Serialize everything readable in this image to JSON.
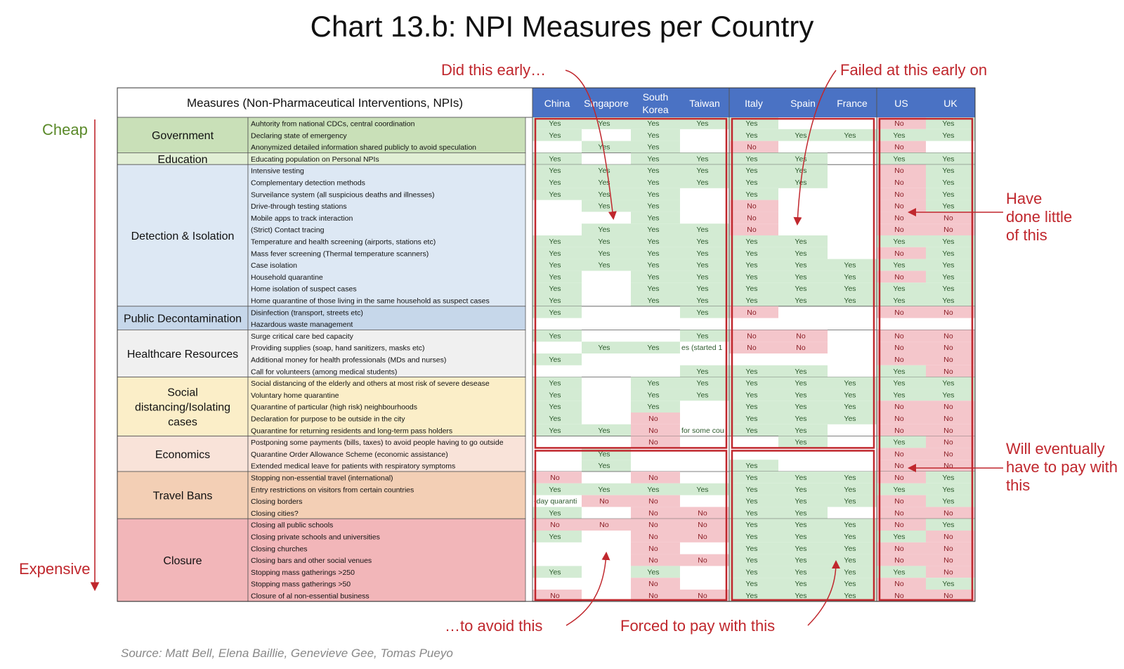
{
  "title": "Chart 13.b: NPI Measures per Country",
  "source": "Source: Matt Bell, Elena Baillie, Genevieve Gee, Tomas Pueyo",
  "annotations": {
    "cheap": "Cheap",
    "expensive": "Expensive",
    "did_early": "Did this early…",
    "failed_early": "Failed at this early on",
    "have_done_little": [
      "Have",
      "done little",
      "of this"
    ],
    "will_pay": [
      "Will eventually",
      "have to pay with",
      "this"
    ],
    "to_avoid": "…to avoid this",
    "forced_to_pay": "Forced to pay with this"
  },
  "colors": {
    "yes": "#d3ebd3",
    "no": "#f4c6cb",
    "header": "#4a72c4",
    "accent": "#c0272d",
    "cheap": "#5b8a2a"
  },
  "chart_data": {
    "type": "table",
    "header": "Measures (Non-Pharmaceutical Interventions, NPIs)",
    "countries": [
      "China",
      "Singapore",
      "South Korea",
      "Taiwan",
      "Italy",
      "Spain",
      "France",
      "US",
      "UK"
    ],
    "categories": [
      {
        "name": "Government",
        "color": "#c9e0b8",
        "rows": [
          {
            "measure": "Auhtority from national CDCs, central coordination",
            "values": [
              "Yes",
              "Yes",
              "Yes",
              "Yes",
              "Yes",
              "",
              "",
              "No",
              "Yes"
            ]
          },
          {
            "measure": "Declaring state of emergency",
            "values": [
              "Yes",
              "",
              "Yes",
              "",
              "Yes",
              "Yes",
              "Yes",
              "Yes",
              "Yes"
            ]
          },
          {
            "measure": "Anonymized detailed information shared publicly to avoid speculation",
            "values": [
              "",
              "Yes",
              "Yes",
              "",
              "No",
              "",
              "",
              "No",
              ""
            ]
          }
        ]
      },
      {
        "name": "Education",
        "color": "#e1efd5",
        "rows": [
          {
            "measure": "Educating population on Personal NPIs",
            "values": [
              "Yes",
              "",
              "Yes",
              "Yes",
              "Yes",
              "Yes",
              "",
              "Yes",
              "Yes"
            ]
          }
        ]
      },
      {
        "name": "Detection & Isolation",
        "color": "#dde8f4",
        "rows": [
          {
            "measure": "Intensive testing",
            "values": [
              "Yes",
              "Yes",
              "Yes",
              "Yes",
              "Yes",
              "Yes",
              "",
              "No",
              "Yes"
            ]
          },
          {
            "measure": "Complementary detection methods",
            "values": [
              "Yes",
              "Yes",
              "Yes",
              "Yes",
              "Yes",
              "Yes",
              "",
              "No",
              "Yes"
            ]
          },
          {
            "measure": "Surveilance system (all suspicious deaths and illnesses)",
            "values": [
              "Yes",
              "Yes",
              "Yes",
              "",
              "Yes",
              "",
              "",
              "No",
              "Yes"
            ]
          },
          {
            "measure": "Drive-through testing stations",
            "values": [
              "",
              "Yes",
              "Yes",
              "",
              "No",
              "",
              "",
              "No",
              "Yes"
            ]
          },
          {
            "measure": "Mobile apps to track interaction",
            "values": [
              "",
              "",
              "Yes",
              "",
              "No",
              "",
              "",
              "No",
              "No"
            ]
          },
          {
            "measure": "(Strict) Contact tracing",
            "values": [
              "",
              "Yes",
              "Yes",
              "Yes",
              "No",
              "",
              "",
              "No",
              "No"
            ]
          },
          {
            "measure": "Temperature and health screening (airports, stations etc)",
            "values": [
              "Yes",
              "Yes",
              "Yes",
              "Yes",
              "Yes",
              "Yes",
              "",
              "Yes",
              "Yes"
            ]
          },
          {
            "measure": "Mass fever screening (Thermal temperature scanners)",
            "values": [
              "Yes",
              "Yes",
              "Yes",
              "Yes",
              "Yes",
              "Yes",
              "",
              "No",
              "Yes"
            ]
          },
          {
            "measure": "Case isolation",
            "values": [
              "Yes",
              "Yes",
              "Yes",
              "Yes",
              "Yes",
              "Yes",
              "Yes",
              "Yes",
              "Yes"
            ]
          },
          {
            "measure": "Household quarantine",
            "values": [
              "Yes",
              "",
              "Yes",
              "Yes",
              "Yes",
              "Yes",
              "Yes",
              "No",
              "Yes"
            ]
          },
          {
            "measure": "Home isolation of suspect cases",
            "values": [
              "Yes",
              "",
              "Yes",
              "Yes",
              "Yes",
              "Yes",
              "Yes",
              "Yes",
              "Yes"
            ]
          },
          {
            "measure": "Home quarantine of those living in the same household as suspect cases",
            "values": [
              "Yes",
              "",
              "Yes",
              "Yes",
              "Yes",
              "Yes",
              "Yes",
              "Yes",
              "Yes"
            ]
          }
        ]
      },
      {
        "name": "Public Decontamination",
        "color": "#c6d7ea",
        "rows": [
          {
            "measure": "Disinfection (transport, streets etc)",
            "values": [
              "Yes",
              "",
              "",
              "Yes",
              "No",
              "",
              "",
              "No",
              "No"
            ]
          },
          {
            "measure": "Hazardous waste management",
            "values": [
              "",
              "",
              "",
              "",
              "",
              "",
              "",
              "",
              ""
            ]
          }
        ]
      },
      {
        "name": "Healthcare Resources",
        "color": "#f0f0f0",
        "rows": [
          {
            "measure": "Surge critical care bed capacity",
            "values": [
              "Yes",
              "",
              "",
              "Yes",
              "No",
              "No",
              "",
              "No",
              "No"
            ]
          },
          {
            "measure": "Providing supplies (soap, hand sanitizers, masks etc)",
            "values": [
              "",
              "Yes",
              "Yes",
              "es (started 1/",
              "No",
              "No",
              "",
              "No",
              "No"
            ]
          },
          {
            "measure": "Additional money for health professionals (MDs and nurses)",
            "values": [
              "Yes",
              "",
              "",
              "",
              "",
              "",
              "",
              "No",
              "No"
            ]
          },
          {
            "measure": "Call for volunteers (among medical students)",
            "values": [
              "",
              "",
              "",
              "Yes",
              "Yes",
              "Yes",
              "",
              "Yes",
              "No"
            ]
          }
        ]
      },
      {
        "name": "Social distancing/Isolating cases",
        "color": "#fbeec8",
        "rows": [
          {
            "measure": "Social distancing of the elderly and others at most risk of severe desease",
            "values": [
              "Yes",
              "",
              "Yes",
              "Yes",
              "Yes",
              "Yes",
              "Yes",
              "Yes",
              "Yes"
            ]
          },
          {
            "measure": "Voluntary home quarantine",
            "values": [
              "Yes",
              "",
              "Yes",
              "Yes",
              "Yes",
              "Yes",
              "Yes",
              "Yes",
              "Yes"
            ]
          },
          {
            "measure": "Quarantine of particular (high risk) neighbourhoods",
            "values": [
              "Yes",
              "",
              "Yes",
              "",
              "Yes",
              "Yes",
              "Yes",
              "No",
              "No"
            ]
          },
          {
            "measure": "Declaration for purpose to be outside in the city",
            "values": [
              "Yes",
              "",
              "No",
              "",
              "Yes",
              "Yes",
              "Yes",
              "No",
              "No"
            ]
          },
          {
            "measure": "Quarantine for returning residents and long-term pass holders",
            "values": [
              "Yes",
              "Yes",
              "No",
              "for some cou",
              "Yes",
              "Yes",
              "",
              "No",
              "No"
            ]
          }
        ]
      },
      {
        "name": "Economics",
        "color": "#f9e3d9",
        "rows": [
          {
            "measure": "Postponing some payments (bills, taxes) to avoid people having to go outside",
            "values": [
              "",
              "",
              "No",
              "",
              "",
              "Yes",
              "",
              "Yes",
              "No"
            ]
          },
          {
            "measure": "Quarantine Order Allowance Scheme (economic assistance)",
            "values": [
              "",
              "Yes",
              "",
              "",
              "",
              "",
              "",
              "No",
              "No"
            ]
          },
          {
            "measure": "Extended medical leave for patients with respiratory symptoms",
            "values": [
              "",
              "Yes",
              "",
              "",
              "Yes",
              "",
              "",
              "No",
              "No"
            ]
          }
        ]
      },
      {
        "name": "Travel Bans",
        "color": "#f3cfb5",
        "rows": [
          {
            "measure": "Stopping non-essential travel (international)",
            "values": [
              "No",
              "",
              "No",
              "",
              "Yes",
              "Yes",
              "Yes",
              "No",
              "Yes"
            ]
          },
          {
            "measure": "Entry restrictions on visitors from certain countries",
            "values": [
              "Yes",
              "Yes",
              "Yes",
              "Yes",
              "Yes",
              "Yes",
              "Yes",
              "Yes",
              "Yes"
            ]
          },
          {
            "measure": "Closing borders",
            "values": [
              "-day quaranti",
              "No",
              "No",
              "",
              "Yes",
              "Yes",
              "Yes",
              "No",
              "Yes"
            ]
          },
          {
            "measure": "Closing cities?",
            "values": [
              "Yes",
              "",
              "No",
              "No",
              "Yes",
              "Yes",
              "",
              "No",
              "No"
            ]
          }
        ]
      },
      {
        "name": "Closure",
        "color": "#f2b6b9",
        "rows": [
          {
            "measure": "Closing all public schools",
            "values": [
              "No",
              "No",
              "No",
              "No",
              "Yes",
              "Yes",
              "Yes",
              "No",
              "Yes"
            ]
          },
          {
            "measure": "Closing private schools and universities",
            "values": [
              "Yes",
              "",
              "No",
              "No",
              "Yes",
              "Yes",
              "Yes",
              "Yes",
              "No"
            ]
          },
          {
            "measure": "Closing churches",
            "values": [
              "",
              "",
              "No",
              "",
              "Yes",
              "Yes",
              "Yes",
              "No",
              "No"
            ]
          },
          {
            "measure": "Closing bars and other social venues",
            "values": [
              "",
              "",
              "No",
              "No",
              "Yes",
              "Yes",
              "Yes",
              "No",
              "No"
            ]
          },
          {
            "measure": "Stopping mass gatherings >250",
            "values": [
              "Yes",
              "",
              "Yes",
              "",
              "Yes",
              "Yes",
              "Yes",
              "Yes",
              "No"
            ]
          },
          {
            "measure": "Stopping mass gatherings >50",
            "values": [
              "",
              "",
              "No",
              "",
              "Yes",
              "Yes",
              "Yes",
              "No",
              "Yes"
            ]
          },
          {
            "measure": "Closure of al non-essential business",
            "values": [
              "No",
              "",
              "No",
              "No",
              "Yes",
              "Yes",
              "Yes",
              "No",
              "No"
            ]
          }
        ]
      }
    ]
  }
}
